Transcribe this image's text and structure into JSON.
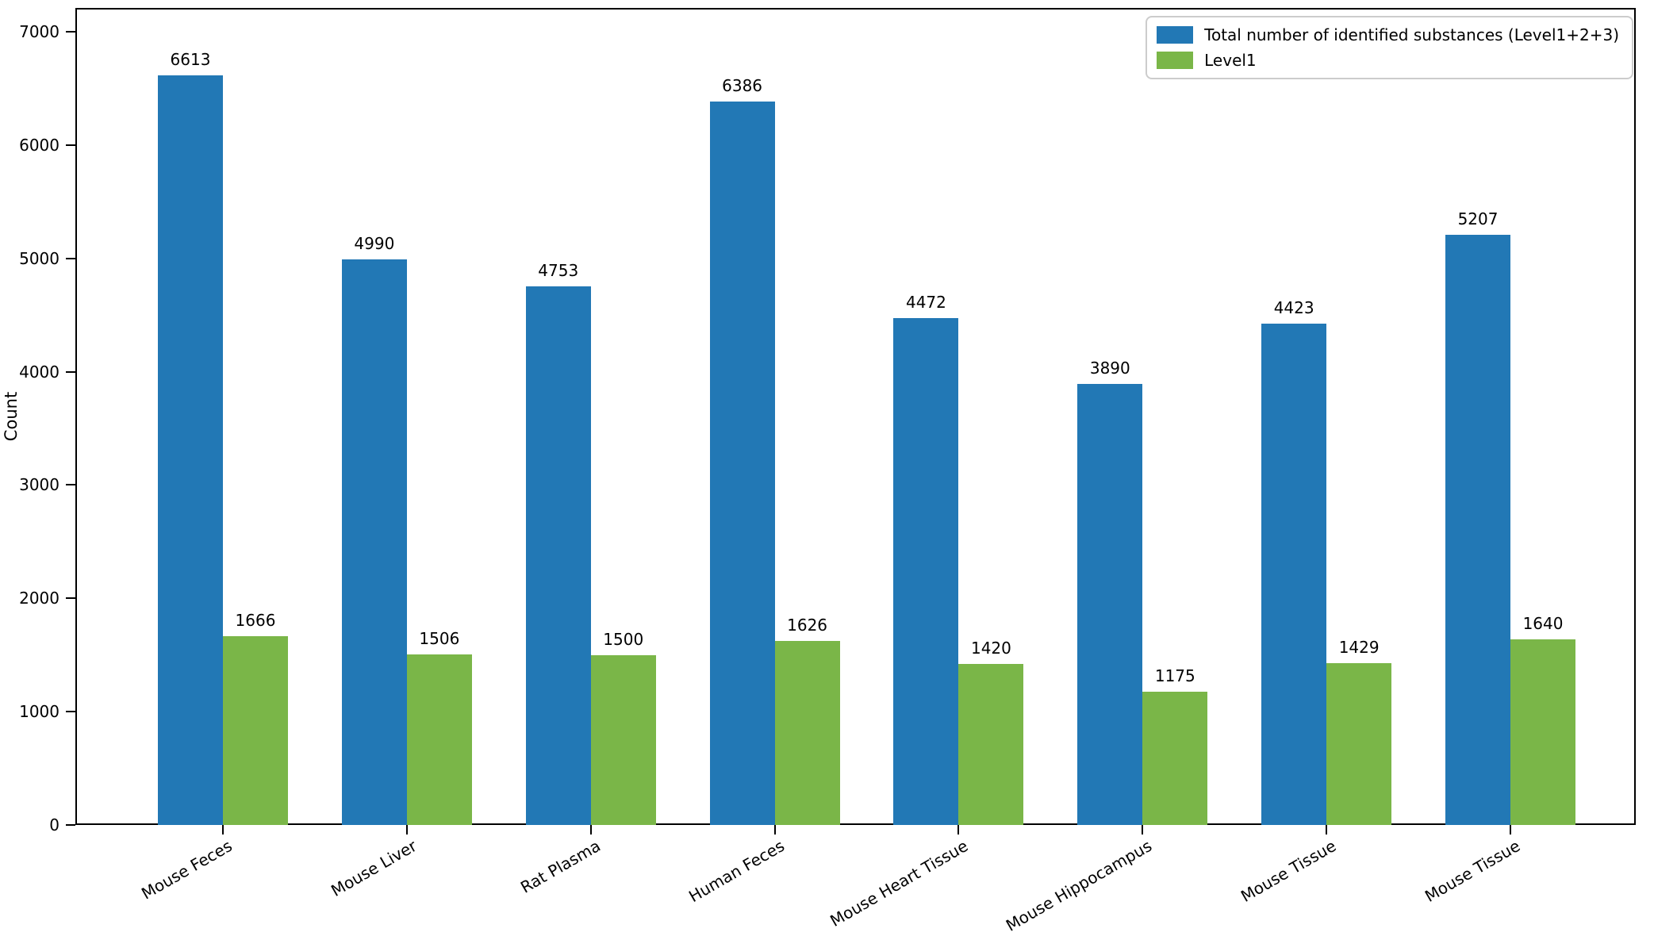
{
  "chart_data": {
    "type": "bar",
    "title": "",
    "xlabel": "",
    "ylabel": "Count",
    "categories": [
      "Mouse Feces",
      "Mouse Liver",
      "Rat Plasma",
      "Human Feces",
      "Mouse Heart Tissue",
      "Mouse Hippocampus",
      "Mouse Tissue",
      "Mouse Tissue"
    ],
    "series": [
      {
        "name": "Total number of identified substances (Level1+2+3)",
        "color": "#2278b5",
        "values": [
          6613,
          4990,
          4753,
          6386,
          4472,
          3890,
          4423,
          5207
        ]
      },
      {
        "name": "Level1",
        "color": "#7ab648",
        "values": [
          1666,
          1506,
          1500,
          1626,
          1420,
          1175,
          1429,
          1640
        ]
      }
    ],
    "yticks": [
      0,
      1000,
      2000,
      3000,
      4000,
      5000,
      6000,
      7000
    ],
    "ylim": [
      0,
      7210
    ],
    "grid": false,
    "legend_position": "upper right",
    "bar_value_labels": true,
    "xtick_rotation": 30
  }
}
